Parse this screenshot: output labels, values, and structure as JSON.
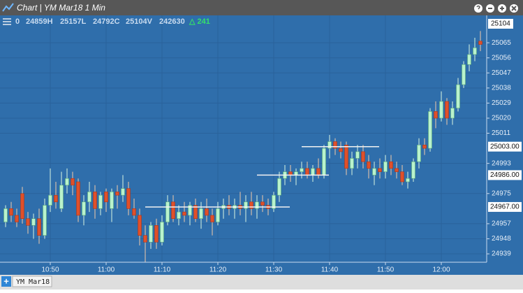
{
  "header": {
    "title": "Chart | YM Mar18 1 Min"
  },
  "info": {
    "tokens": [
      "0",
      "24859H",
      "25157L",
      "24792C",
      "25104V",
      "242630"
    ],
    "change": "△ 241"
  },
  "price_marker": "25104",
  "tabs": {
    "add": "+",
    "items": [
      "YM Mar18"
    ]
  },
  "chart_data": {
    "type": "candlestick",
    "categories": [
      null,
      null,
      null,
      null,
      null,
      null,
      null,
      null,
      "10:50",
      null,
      null,
      null,
      null,
      null,
      null,
      null,
      null,
      null,
      "11:00",
      null,
      null,
      null,
      null,
      null,
      null,
      null,
      null,
      null,
      "11:10",
      null,
      null,
      null,
      null,
      null,
      null,
      null,
      null,
      null,
      "11:20",
      null,
      null,
      null,
      null,
      null,
      null,
      null,
      null,
      null,
      "11:30",
      null,
      null,
      null,
      null,
      null,
      null,
      null,
      null,
      null,
      "11:40",
      null,
      null,
      null,
      null,
      null,
      null,
      null,
      null,
      null,
      "11:50",
      null,
      null,
      null,
      null,
      null,
      null,
      null,
      null,
      null,
      "12:00",
      null,
      null,
      null,
      null,
      null,
      null,
      null
    ],
    "open": [
      24958,
      24966,
      24962,
      24975,
      24960,
      24956,
      24960,
      24950,
      24968,
      24974,
      24966,
      24980,
      24984,
      24982,
      24962,
      24970,
      24976,
      24966,
      24976,
      24966,
      24976,
      24974,
      24978,
      24966,
      24962,
      24950,
      24946,
      24956,
      24946,
      24958,
      24970,
      24960,
      24964,
      24962,
      24968,
      24960,
      24966,
      24962,
      24958,
      24966,
      24968,
      24966,
      24968,
      24966,
      24970,
      24966,
      24970,
      24968,
      24966,
      24974,
      24984,
      24988,
      24986,
      24988,
      24990,
      24986,
      24990,
      24986,
      25002,
      25006,
      25002,
      25004,
      24990,
      24996,
      25000,
      24994,
      24986,
      24990,
      24988,
      24994,
      24990,
      24988,
      24982,
      24984,
      24994,
      25004,
      25002,
      25024,
      25020,
      25030,
      25020,
      25026,
      25040,
      25052,
      25058,
      25066
    ],
    "high": [
      24968,
      24970,
      24966,
      24979,
      24964,
      24963,
      24966,
      24972,
      24990,
      24982,
      24988,
      24990,
      24988,
      24984,
      24974,
      24982,
      24980,
      24976,
      24978,
      24978,
      24980,
      24986,
      24982,
      24972,
      24966,
      24956,
      24958,
      24960,
      24962,
      24974,
      24974,
      24968,
      24970,
      24970,
      24972,
      24970,
      24972,
      24966,
      24970,
      24972,
      24974,
      24972,
      24976,
      24974,
      24976,
      24974,
      24974,
      24972,
      24976,
      24988,
      24992,
      24992,
      24990,
      24994,
      24994,
      24992,
      24996,
      25004,
      25010,
      25008,
      25006,
      25006,
      25000,
      25004,
      25004,
      24998,
      24994,
      24996,
      24998,
      24998,
      24994,
      24992,
      24988,
      24996,
      25008,
      25008,
      25026,
      25030,
      25036,
      25032,
      25030,
      25044,
      25054,
      25064,
      25068,
      25072
    ],
    "low": [
      24955,
      24958,
      24955,
      24957,
      24951,
      24948,
      24945,
      24948,
      24964,
      24966,
      24964,
      24975,
      24974,
      24958,
      24956,
      24964,
      24960,
      24962,
      24964,
      24958,
      24966,
      24970,
      24962,
      24960,
      24944,
      24934,
      24942,
      24942,
      24944,
      24956,
      24958,
      24956,
      24958,
      24956,
      24958,
      24954,
      24958,
      24950,
      24956,
      24960,
      24962,
      24960,
      24962,
      24958,
      24962,
      24960,
      24964,
      24962,
      24964,
      24970,
      24980,
      24982,
      24980,
      24984,
      24984,
      24982,
      24984,
      24984,
      24996,
      24998,
      24996,
      24986,
      24986,
      24990,
      24990,
      24984,
      24980,
      24984,
      24984,
      24986,
      24984,
      24980,
      24978,
      24982,
      24990,
      24998,
      25000,
      25014,
      25018,
      25016,
      25016,
      25024,
      25038,
      25048,
      25054,
      25060
    ],
    "close": [
      24966,
      24962,
      24958,
      24960,
      24956,
      24960,
      24950,
      24968,
      24974,
      24970,
      24980,
      24984,
      24980,
      24962,
      24970,
      24976,
      24966,
      24974,
      24970,
      24976,
      24974,
      24978,
      24966,
      24962,
      24950,
      24946,
      24956,
      24946,
      24958,
      24970,
      24960,
      24964,
      24962,
      24968,
      24960,
      24966,
      24962,
      24958,
      24966,
      24968,
      24966,
      24968,
      24966,
      24970,
      24966,
      24970,
      24968,
      24966,
      24974,
      24984,
      24988,
      24986,
      24988,
      24990,
      24986,
      24990,
      24986,
      25002,
      25006,
      25002,
      25000,
      24990,
      24996,
      25000,
      24994,
      24990,
      24990,
      24988,
      24994,
      24990,
      24988,
      24982,
      24984,
      24994,
      25004,
      25002,
      25024,
      25020,
      25030,
      25020,
      25026,
      25040,
      25052,
      25058,
      25062,
      25064
    ],
    "up_color": "#b9f2cc",
    "down_color": "#e0502a",
    "ylim": [
      24934,
      25073
    ],
    "yticks": [
      24939,
      24948,
      24957,
      24975,
      24993,
      25011,
      25020,
      25029,
      25038,
      25047,
      25056,
      25065
    ],
    "levels": [
      {
        "value": 24967,
        "label": "24967.00"
      },
      {
        "value": 24986,
        "label": "24986.00"
      },
      {
        "value": 25003,
        "label": "25003.00"
      }
    ],
    "grid": true
  }
}
